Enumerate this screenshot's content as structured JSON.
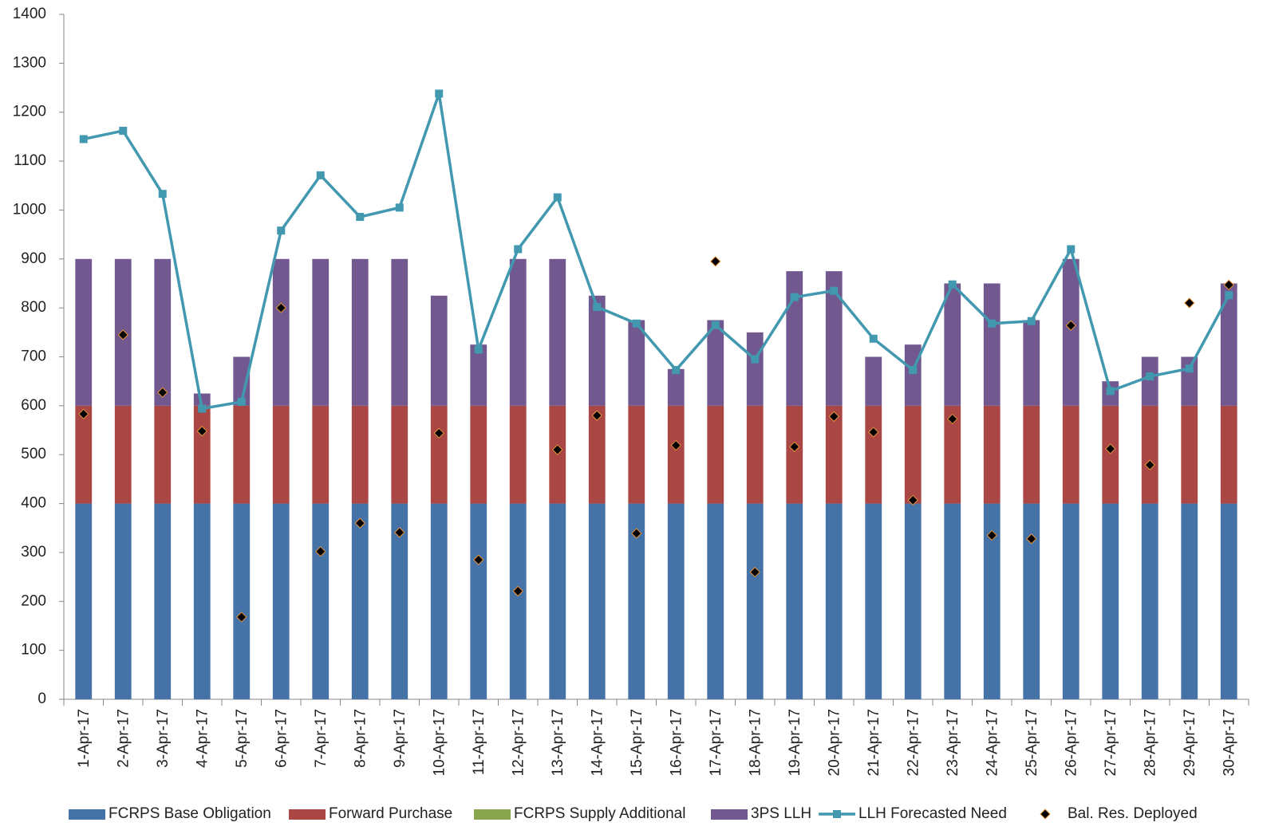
{
  "chart_data": {
    "type": "bar",
    "stacked": true,
    "categories": [
      "1-Apr-17",
      "2-Apr-17",
      "3-Apr-17",
      "4-Apr-17",
      "5-Apr-17",
      "6-Apr-17",
      "7-Apr-17",
      "8-Apr-17",
      "9-Apr-17",
      "10-Apr-17",
      "11-Apr-17",
      "12-Apr-17",
      "13-Apr-17",
      "14-Apr-17",
      "15-Apr-17",
      "16-Apr-17",
      "17-Apr-17",
      "18-Apr-17",
      "19-Apr-17",
      "20-Apr-17",
      "21-Apr-17",
      "22-Apr-17",
      "23-Apr-17",
      "24-Apr-17",
      "25-Apr-17",
      "26-Apr-17",
      "27-Apr-17",
      "28-Apr-17",
      "29-Apr-17",
      "30-Apr-17"
    ],
    "series": [
      {
        "name": "FCRPS Base Obligation",
        "type": "bar",
        "color": "#4572a7",
        "values": [
          400,
          400,
          400,
          400,
          400,
          400,
          400,
          400,
          400,
          400,
          400,
          400,
          400,
          400,
          400,
          400,
          400,
          400,
          400,
          400,
          400,
          400,
          400,
          400,
          400,
          400,
          400,
          400,
          400,
          400
        ]
      },
      {
        "name": "Forward Purchase",
        "type": "bar",
        "color": "#aa4643",
        "values": [
          200,
          200,
          200,
          200,
          200,
          200,
          200,
          200,
          200,
          200,
          200,
          200,
          200,
          200,
          200,
          200,
          200,
          200,
          200,
          200,
          200,
          200,
          200,
          200,
          200,
          200,
          200,
          200,
          200,
          200
        ]
      },
      {
        "name": "FCRPS Supply Additional",
        "type": "bar",
        "color": "#89a54e",
        "values": [
          0,
          0,
          0,
          0,
          0,
          0,
          0,
          0,
          0,
          0,
          0,
          0,
          0,
          0,
          0,
          0,
          0,
          0,
          0,
          0,
          0,
          0,
          0,
          0,
          0,
          0,
          0,
          0,
          0,
          0
        ]
      },
      {
        "name": "3PS LLH",
        "type": "bar",
        "color": "#71588f",
        "values": [
          300,
          300,
          300,
          25,
          100,
          300,
          300,
          300,
          300,
          225,
          125,
          300,
          300,
          225,
          175,
          75,
          175,
          150,
          275,
          275,
          100,
          125,
          250,
          250,
          175,
          300,
          50,
          100,
          100,
          250
        ]
      },
      {
        "name": "LLH Forecasted Need",
        "type": "line",
        "color": "#4198af",
        "values": [
          1145,
          1162,
          1033,
          594,
          608,
          958,
          1071,
          986,
          1005,
          1238,
          715,
          920,
          1026,
          802,
          768,
          673,
          765,
          695,
          822,
          835,
          737,
          673,
          848,
          768,
          773,
          920,
          630,
          660,
          676,
          826
        ]
      },
      {
        "name": "Bal. Res. Deployed",
        "type": "scatter",
        "color": "#000000",
        "values": [
          583,
          745,
          627,
          548,
          168,
          800,
          302,
          360,
          341,
          544,
          285,
          221,
          510,
          580,
          339,
          519,
          895,
          260,
          516,
          578,
          546,
          407,
          573,
          335,
          328,
          764,
          512,
          479,
          810,
          847
        ]
      }
    ],
    "ylim": [
      0,
      1400
    ],
    "yticks": [
      0,
      100,
      200,
      300,
      400,
      500,
      600,
      700,
      800,
      900,
      1000,
      1100,
      1200,
      1300,
      1400
    ],
    "grid": false,
    "legend": "bottom"
  }
}
